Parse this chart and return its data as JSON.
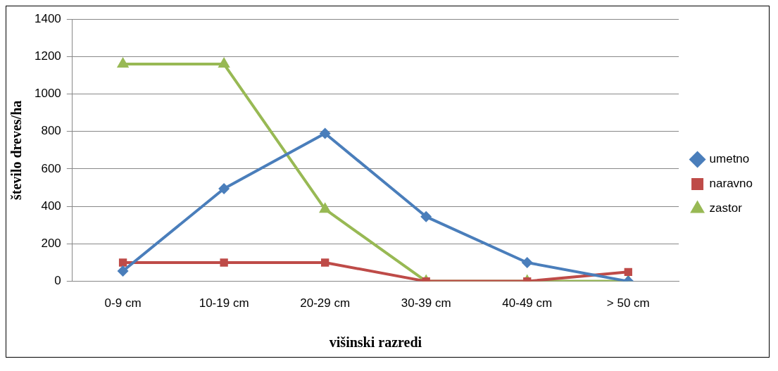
{
  "chart_data": {
    "type": "line",
    "xlabel": "višinski razredi",
    "ylabel": "število dreves/ha",
    "categories": [
      "0-9 cm",
      "10-19 cm",
      "20-29 cm",
      "30-39 cm",
      "40-49 cm",
      "> 50 cm"
    ],
    "series": [
      {
        "name": "umetno",
        "color": "#4a7ebb",
        "marker": "diamond",
        "values": [
          55,
          495,
          790,
          345,
          100,
          0
        ]
      },
      {
        "name": "naravno",
        "color": "#be4b48",
        "marker": "square",
        "values": [
          100,
          100,
          100,
          0,
          0,
          50
        ]
      },
      {
        "name": "zastor",
        "color": "#98b954",
        "marker": "triangle",
        "values": [
          1160,
          1160,
          385,
          0,
          0,
          0
        ]
      }
    ],
    "ylim": [
      0,
      1400
    ],
    "yticks": [
      0,
      200,
      400,
      600,
      800,
      1000,
      1200,
      1400
    ],
    "grid": "y",
    "legend": "right",
    "line_style": "solid"
  }
}
